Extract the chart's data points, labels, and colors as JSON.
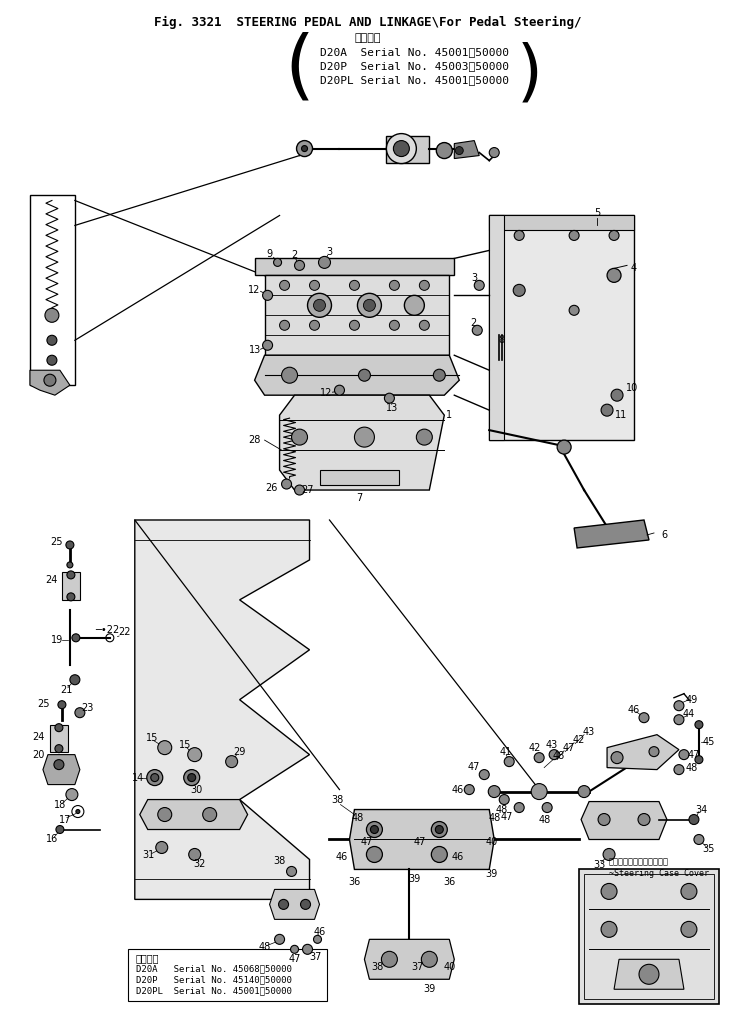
{
  "title_line1": "Fig. 3321  STEERING PEDAL AND LINKAGE\\For Pedal Steering/",
  "title_line2": "適用号機",
  "title_line3": "D20A  Serial No. 45001～50000",
  "title_line4": "D20P  Serial No. 45003～50000",
  "title_line5": "D20PL Serial No. 45001～50000",
  "bottom_label1": "適用号機",
  "bottom_label2": "D20A   Serial No. 45068～50000",
  "bottom_label3": "D20P   Serial No. 45140～50000",
  "bottom_label4": "D20PL  Serial No. 45001～50000",
  "steering_case_label1": "ステアリングケースカバー",
  "steering_case_label2": "~Steering Case Cover",
  "bg_color": "#ffffff",
  "line_color": "#000000",
  "figsize": [
    7.36,
    10.27
  ],
  "dpi": 100
}
